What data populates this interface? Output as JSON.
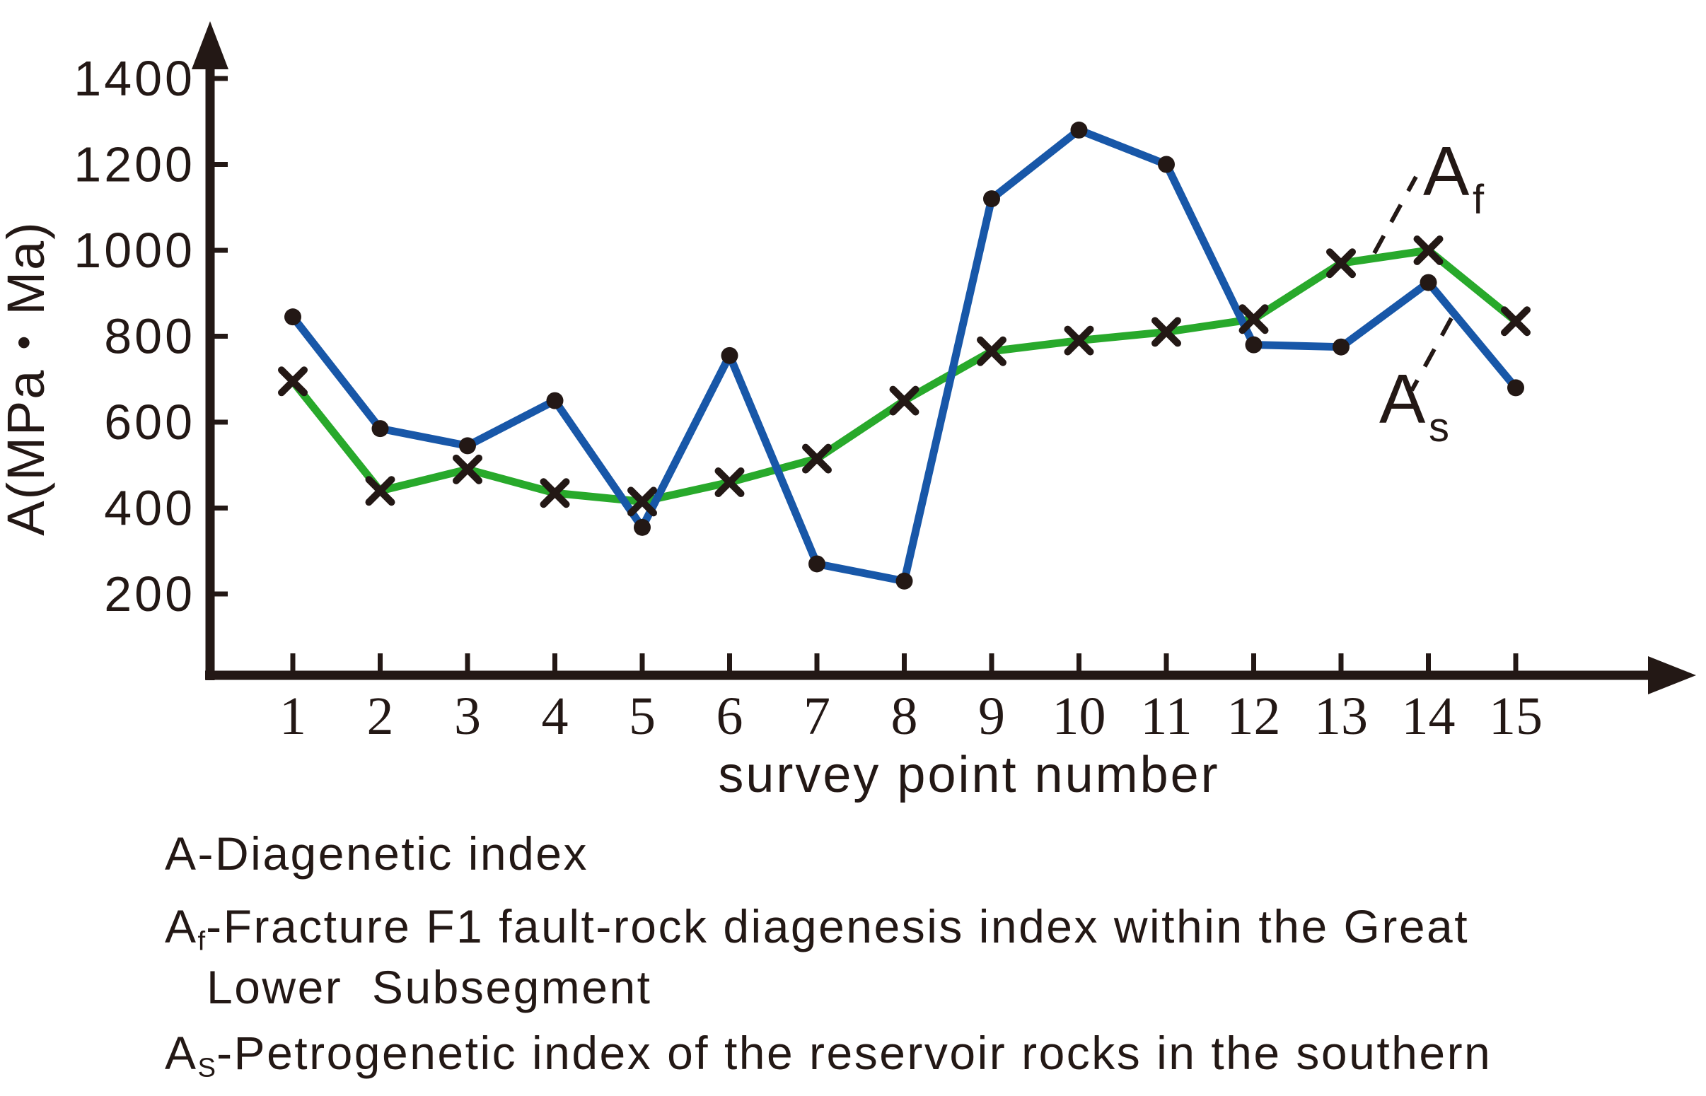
{
  "figure": {
    "background": "#ffffff",
    "ink_color": "#231815"
  },
  "chart_data": {
    "type": "line",
    "title": "",
    "xlabel": "survey point number",
    "ylabel": "A(MPa・Ma)",
    "x": [
      1,
      2,
      3,
      4,
      5,
      6,
      7,
      8,
      9,
      10,
      11,
      12,
      13,
      14,
      15
    ],
    "x_tick_labels": [
      "1",
      "2",
      "3",
      "4",
      "5",
      "6",
      "7",
      "8",
      "9",
      "10",
      "11",
      "12",
      "13",
      "14",
      "15"
    ],
    "y_ticks": [
      200,
      400,
      600,
      800,
      1000,
      1200,
      1400
    ],
    "ylim": [
      0,
      1520
    ],
    "grid": false,
    "legend_position": "annotated-on-lines",
    "marker_color": "#231815",
    "axis_color": "#231815",
    "series": [
      {
        "name": "Af",
        "label_main": "A",
        "label_sub": "f",
        "color": "#28A92B",
        "marker": "x",
        "values": [
          695,
          440,
          490,
          435,
          415,
          460,
          515,
          650,
          765,
          790,
          810,
          840,
          970,
          1000,
          835
        ]
      },
      {
        "name": "As",
        "label_main": "A",
        "label_sub": "s",
        "color": "#1857A8",
        "marker": "circle",
        "values": [
          845,
          585,
          545,
          650,
          355,
          755,
          270,
          230,
          1120,
          1280,
          1200,
          780,
          775,
          925,
          680
        ]
      }
    ]
  },
  "caption": {
    "lines": [
      {
        "prefix": "A",
        "sub": "",
        "text": "-Diagenetic index"
      },
      {
        "prefix": "A",
        "sub": "f",
        "text": "-Fracture F1 fault-rock diagenesis index within the Great"
      },
      {
        "prefix": "",
        "sub": "",
        "text": "Lower  Subsegment"
      },
      {
        "prefix": "A",
        "sub": "S",
        "text": "-Petrogenetic index of the reservoir rocks in the southern"
      }
    ]
  }
}
